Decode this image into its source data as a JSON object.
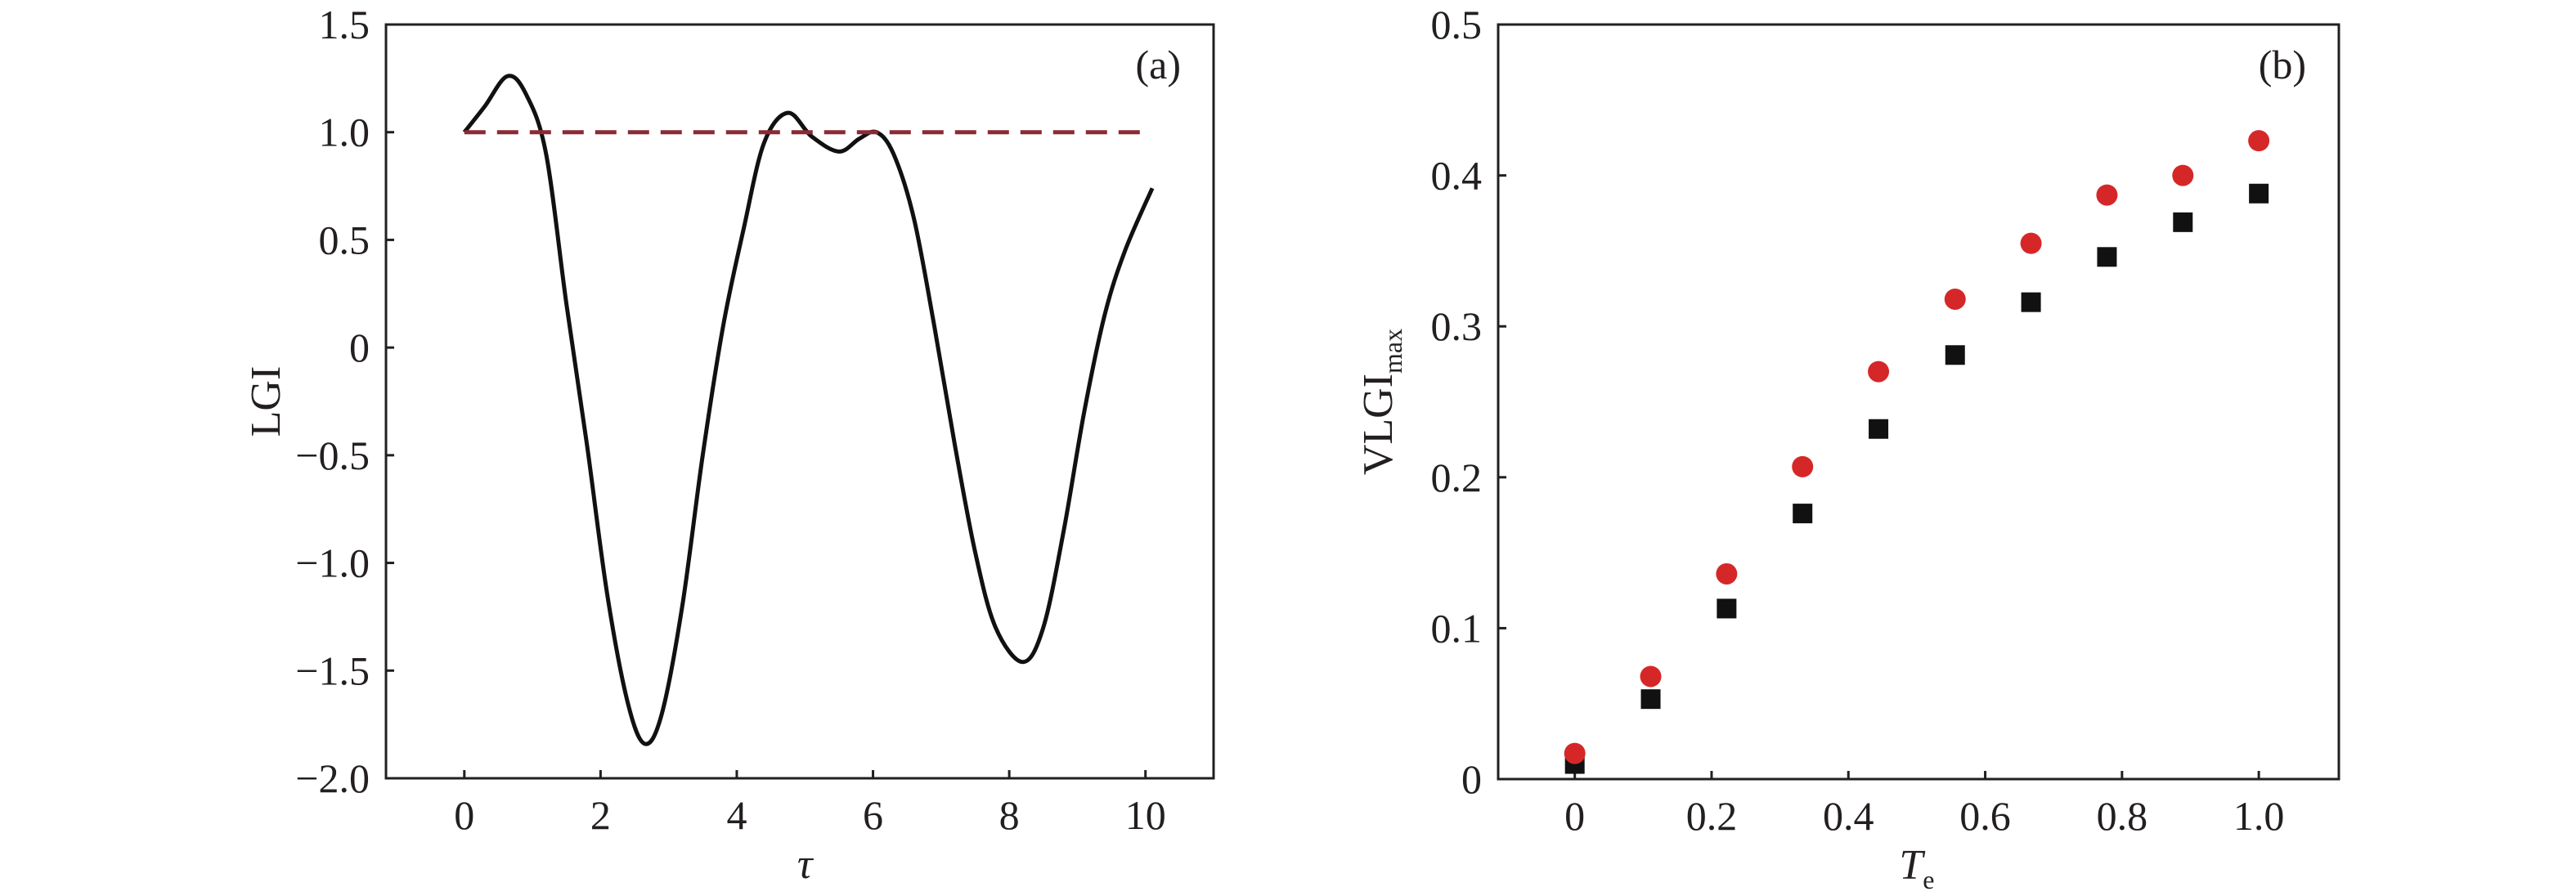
{
  "chart_data": [
    {
      "type": "line",
      "panel_label": "(a)",
      "xlabel": "τ",
      "ylabel": "LGI",
      "xlim": [
        -1.15,
        11.0
      ],
      "ylim": [
        -2.0,
        1.5
      ],
      "xticks": [
        0,
        2,
        4,
        6,
        8,
        10
      ],
      "xtick_labels": [
        "0",
        "2",
        "4",
        "6",
        "8",
        "10"
      ],
      "yticks": [
        1.5,
        1.0,
        0.5,
        0,
        -0.5,
        -1.0,
        -1.5,
        -2.0
      ],
      "ytick_labels": [
        "1.5",
        "1.0",
        "0.5",
        "0",
        "−0.5",
        "−1.0",
        "−1.5",
        "−2.0"
      ],
      "grid": false,
      "series": [
        {
          "name": "LGI",
          "color": "#111111",
          "style": "solid",
          "x": [
            0,
            0.3,
            0.63,
            0.9,
            1.2,
            1.5,
            1.8,
            2.1,
            2.4,
            2.65,
            2.9,
            3.2,
            3.5,
            3.8,
            4.1,
            4.4,
            4.75,
            5.1,
            5.5,
            5.8,
            6.05,
            6.3,
            6.6,
            6.9,
            7.2,
            7.5,
            7.8,
            8.2,
            8.5,
            8.8,
            9.1,
            9.4,
            9.7,
            10.1
          ],
          "y": [
            1.0,
            1.12,
            1.26,
            1.18,
            0.9,
            0.2,
            -0.45,
            -1.15,
            -1.65,
            -1.84,
            -1.7,
            -1.2,
            -0.5,
            0.1,
            0.55,
            0.95,
            1.09,
            0.98,
            0.91,
            0.97,
            1.0,
            0.9,
            0.6,
            0.1,
            -0.45,
            -0.95,
            -1.3,
            -1.46,
            -1.3,
            -0.85,
            -0.3,
            0.15,
            0.45,
            0.74
          ]
        },
        {
          "name": "bound",
          "color": "#8b2a35",
          "style": "dashed",
          "x": [
            0,
            10
          ],
          "y": [
            1.0,
            1.0
          ]
        }
      ]
    },
    {
      "type": "scatter",
      "panel_label": "(b)",
      "xlabel": "T",
      "xlabel_sub": "e",
      "ylabel": "VLGI",
      "ylabel_sub": "max",
      "xlim": [
        -0.112,
        1.117
      ],
      "ylim": [
        0,
        0.5
      ],
      "xticks": [
        0,
        0.2,
        0.4,
        0.6,
        0.8,
        1.0
      ],
      "xtick_labels": [
        "0",
        "0.2",
        "0.4",
        "0.6",
        "0.8",
        "1.0"
      ],
      "yticks": [
        0.5,
        0.4,
        0.3,
        0.2,
        0.1,
        0
      ],
      "ytick_labels": [
        "0.5",
        "0.4",
        "0.3",
        "0.2",
        "0.1",
        "0"
      ],
      "grid": false,
      "series": [
        {
          "name": "squares",
          "marker": "square",
          "color": "#111111",
          "x": [
            0,
            0.111,
            0.222,
            0.333,
            0.444,
            0.556,
            0.667,
            0.778,
            0.889,
            1.0
          ],
          "y": [
            0.01,
            0.053,
            0.113,
            0.176,
            0.232,
            0.281,
            0.316,
            0.346,
            0.369,
            0.388
          ]
        },
        {
          "name": "circles",
          "marker": "circle",
          "color": "#d62728",
          "x": [
            0,
            0.111,
            0.222,
            0.333,
            0.444,
            0.556,
            0.667,
            0.778,
            0.889,
            1.0
          ],
          "y": [
            0.017,
            0.068,
            0.136,
            0.207,
            0.27,
            0.318,
            0.355,
            0.387,
            0.4,
            0.423
          ]
        }
      ]
    }
  ]
}
